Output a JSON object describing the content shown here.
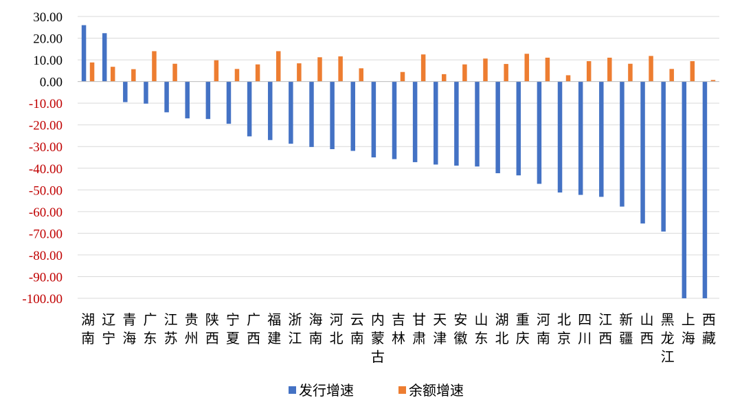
{
  "chart_data": {
    "type": "bar",
    "categories": [
      "湖南",
      "辽宁",
      "青海",
      "广东",
      "江苏",
      "贵州",
      "陕西",
      "宁夏",
      "广西",
      "福建",
      "浙江",
      "海南",
      "河北",
      "云南",
      "内蒙古",
      "吉林",
      "甘肃",
      "天津",
      "安徽",
      "山东",
      "湖北",
      "重庆",
      "河南",
      "北京",
      "四川",
      "江西",
      "新疆",
      "山西",
      "黑龙江",
      "上海",
      "西藏"
    ],
    "series": [
      {
        "name": "发行增速",
        "color": "#4472C4",
        "values": [
          26.0,
          22.3,
          -9.5,
          -10.2,
          -14.2,
          -17.0,
          -17.3,
          -19.5,
          -25.3,
          -27.0,
          -28.7,
          -30.2,
          -31.2,
          -32.0,
          -35.0,
          -35.8,
          -37.2,
          -38.3,
          -38.8,
          -39.2,
          -42.3,
          -43.3,
          -47.2,
          -51.2,
          -52.3,
          -53.2,
          -57.7,
          -65.5,
          -69.2,
          -100.0,
          -100.0
        ]
      },
      {
        "name": "余额增速",
        "color": "#ED7D31",
        "values": [
          8.8,
          6.8,
          5.7,
          14.0,
          8.2,
          0,
          9.8,
          5.8,
          7.9,
          14.0,
          8.4,
          11.2,
          11.6,
          6.1,
          0,
          4.4,
          12.5,
          3.4,
          7.9,
          10.6,
          8.1,
          12.8,
          11.0,
          2.9,
          9.4,
          11.0,
          8.2,
          11.8,
          5.8,
          9.4,
          0.7
        ]
      }
    ],
    "y_ticks": [
      "30.00",
      "20.00",
      "10.00",
      "0.00",
      "-10.00",
      "-20.00",
      "-30.00",
      "-40.00",
      "-50.00",
      "-60.00",
      "-70.00",
      "-80.00",
      "-90.00",
      "-100.00"
    ],
    "ylim": [
      -100,
      30
    ],
    "grid": true,
    "legend_position": "bottom",
    "positive_tick_color": "#000000",
    "negative_tick_color": "#C00000",
    "grid_color": "#D9D9D9",
    "title": "",
    "xlabel": "",
    "ylabel": ""
  }
}
